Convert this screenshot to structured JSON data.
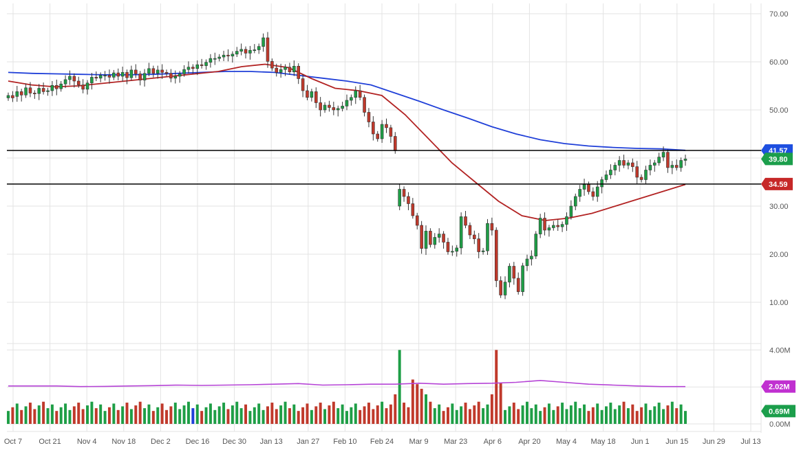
{
  "chart_data": {
    "type": "candlestick",
    "y_axis": {
      "range": [
        0,
        70
      ],
      "ticks": [
        "70.00",
        "60.00",
        "50.00",
        "40.00",
        "30.00",
        "20.00",
        "10.00"
      ],
      "tick_values": [
        70,
        60,
        50,
        40,
        30,
        20,
        10
      ]
    },
    "volume_axis": {
      "range": [
        0,
        4.2
      ],
      "ticks": [
        "4.00M",
        "2.00M",
        "0.00M"
      ],
      "tick_values": [
        4,
        2,
        0
      ]
    },
    "x_axis": {
      "ticks": [
        "Oct 7",
        "Oct 21",
        "Nov 4",
        "Nov 18",
        "Dec 2",
        "Dec 16",
        "Dec 30",
        "Jan 13",
        "Jan 27",
        "Feb 10",
        "Feb 24",
        "Mar 9",
        "Mar 23",
        "Apr 6",
        "Apr 20",
        "May 4",
        "May 18",
        "Jun 1",
        "Jun 15",
        "Jun 29",
        "Jul 13"
      ],
      "grid": true
    },
    "horizontal_lines": [
      {
        "label": "41.57",
        "value": 41.57,
        "color": "#000000",
        "badge_color": "#1e4fe0"
      },
      {
        "label": "34.59",
        "value": 34.59,
        "color": "#000000",
        "badge_color": "#c62828"
      }
    ],
    "price_badge": {
      "label": "39.80",
      "value": 39.8,
      "color": "#1b9e4b"
    },
    "volume_badges": [
      {
        "label": "2.02M",
        "value": 2.02,
        "color": "#c030d0"
      },
      {
        "label": "0.69M",
        "value": 0.69,
        "color": "#1b9e4b"
      }
    ],
    "colors": {
      "up": "#1e9e46",
      "down": "#c0392b",
      "ma_slow": "#1f3fd8",
      "ma_fast": "#b22222",
      "volume_avg": "#b543d6"
    },
    "moving_average_200": [
      57.8,
      57.6,
      57.5,
      57.4,
      57.3,
      57.3,
      57.4,
      57.6,
      57.8,
      58.0,
      58.0,
      57.8,
      57.2,
      56.6,
      56.0,
      55.2,
      53.5,
      51.8,
      50.0,
      48.3,
      46.5,
      45.0,
      43.8,
      43.0,
      42.5,
      42.2,
      42.0,
      41.9,
      41.6
    ],
    "moving_average_50": [
      56.0,
      55.2,
      54.8,
      55.0,
      55.5,
      56.0,
      56.5,
      57.0,
      57.5,
      58.0,
      59.0,
      59.5,
      58.8,
      56.5,
      54.5,
      54.0,
      53.0,
      49.0,
      44.0,
      39.0,
      35.0,
      31.0,
      28.0,
      27.0,
      27.5,
      28.5,
      30.0,
      31.5,
      33.0,
      34.5
    ],
    "candles": [
      [
        52.5,
        53.0
      ],
      [
        53.0,
        52.5
      ],
      [
        52.8,
        53.8
      ],
      [
        53.8,
        53.1
      ],
      [
        53.1,
        54.6
      ],
      [
        54.6,
        53.5
      ],
      [
        53.5,
        53.4
      ],
      [
        53.4,
        54.5
      ],
      [
        54.5,
        53.8
      ],
      [
        53.8,
        54.0
      ],
      [
        54.0,
        55.1
      ],
      [
        55.1,
        54.4
      ],
      [
        54.4,
        55.4
      ],
      [
        55.4,
        56.3
      ],
      [
        56.3,
        57.0
      ],
      [
        57.0,
        56.0
      ],
      [
        56.0,
        55.2
      ],
      [
        55.2,
        54.3
      ],
      [
        54.3,
        55.6
      ],
      [
        55.6,
        56.8
      ],
      [
        56.8,
        56.6
      ],
      [
        56.6,
        57.2
      ],
      [
        57.2,
        57.2
      ],
      [
        57.2,
        56.8
      ],
      [
        56.8,
        57.7
      ],
      [
        57.7,
        57.0
      ],
      [
        57.0,
        57.8
      ],
      [
        57.8,
        56.7
      ],
      [
        56.7,
        58.3
      ],
      [
        58.3,
        57.5
      ],
      [
        57.5,
        56.2
      ],
      [
        56.2,
        57.6
      ],
      [
        57.6,
        58.6
      ],
      [
        58.6,
        57.6
      ],
      [
        57.6,
        58.3
      ],
      [
        58.3,
        57.8
      ],
      [
        57.8,
        57.6
      ],
      [
        57.6,
        56.6
      ],
      [
        56.6,
        57.0
      ],
      [
        57.0,
        57.5
      ],
      [
        57.5,
        58.4
      ],
      [
        58.4,
        58.9
      ],
      [
        58.9,
        58.6
      ],
      [
        58.6,
        59.4
      ],
      [
        59.4,
        59.2
      ],
      [
        59.2,
        59.9
      ],
      [
        59.9,
        60.7
      ],
      [
        60.7,
        60.7
      ],
      [
        60.7,
        61.0
      ],
      [
        61.0,
        61.4
      ],
      [
        61.4,
        61.2
      ],
      [
        61.2,
        61.6
      ],
      [
        61.6,
        62.2
      ],
      [
        62.2,
        62.6
      ],
      [
        62.6,
        61.8
      ],
      [
        61.8,
        62.4
      ],
      [
        62.4,
        62.5
      ],
      [
        62.5,
        63.2
      ],
      [
        63.2,
        65.0
      ],
      [
        65.0,
        60.1
      ],
      [
        60.1,
        58.7
      ],
      [
        58.7,
        57.8
      ],
      [
        57.8,
        58.4
      ],
      [
        58.4,
        58.9
      ],
      [
        58.9,
        57.9
      ],
      [
        57.9,
        59.1
      ],
      [
        59.1,
        56.5
      ],
      [
        56.5,
        54.0
      ],
      [
        54.0,
        52.6
      ],
      [
        52.6,
        53.8
      ],
      [
        53.8,
        51.5
      ],
      [
        51.5,
        50.0
      ],
      [
        50.0,
        51.0
      ],
      [
        51.0,
        50.5
      ],
      [
        50.5,
        50.0
      ],
      [
        50.0,
        50.3
      ],
      [
        50.3,
        50.8
      ],
      [
        50.8,
        52.0
      ],
      [
        52.0,
        52.6
      ],
      [
        52.6,
        54.0
      ],
      [
        54.0,
        52.6
      ],
      [
        52.6,
        49.5
      ],
      [
        49.5,
        47.5
      ],
      [
        47.5,
        45.0
      ],
      [
        45.0,
        44.0
      ],
      [
        44.0,
        47.0
      ],
      [
        47.0,
        46.3
      ],
      [
        46.3,
        44.5
      ],
      [
        44.5,
        41.5
      ],
      [
        30.0,
        33.5
      ],
      [
        33.5,
        32.0
      ],
      [
        32.0,
        30.5
      ],
      [
        30.5,
        28.0
      ],
      [
        28.0,
        26.0
      ],
      [
        26.0,
        21.2
      ],
      [
        21.2,
        24.8
      ],
      [
        24.8,
        22.0
      ],
      [
        22.0,
        23.5
      ],
      [
        23.5,
        24.2
      ],
      [
        24.2,
        22.5
      ],
      [
        22.5,
        20.5
      ],
      [
        20.5,
        20.6
      ],
      [
        20.6,
        21.3
      ],
      [
        21.3,
        27.8
      ],
      [
        27.8,
        26.0
      ],
      [
        26.0,
        24.0
      ],
      [
        24.0,
        23.2
      ],
      [
        23.2,
        20.5
      ],
      [
        20.5,
        20.7
      ],
      [
        20.7,
        26.4
      ],
      [
        26.4,
        25.0
      ],
      [
        25.0,
        14.5
      ],
      [
        14.5,
        11.5
      ],
      [
        11.5,
        14.2
      ],
      [
        14.2,
        17.5
      ],
      [
        17.5,
        15.0
      ],
      [
        15.0,
        12.2
      ],
      [
        12.2,
        17.6
      ],
      [
        17.6,
        19.0
      ],
      [
        19.0,
        19.6
      ],
      [
        19.6,
        24.2
      ],
      [
        24.2,
        27.5
      ],
      [
        27.5,
        25.0
      ],
      [
        25.0,
        25.5
      ],
      [
        25.5,
        26.0
      ],
      [
        26.0,
        25.7
      ],
      [
        25.7,
        26.2
      ],
      [
        26.2,
        27.8
      ],
      [
        27.8,
        30.0
      ],
      [
        30.0,
        32.0
      ],
      [
        32.0,
        33.5
      ],
      [
        33.5,
        34.5
      ],
      [
        34.5,
        33.0
      ],
      [
        33.0,
        32.0
      ],
      [
        32.0,
        34.0
      ],
      [
        34.0,
        35.5
      ],
      [
        35.5,
        36.5
      ],
      [
        36.5,
        37.5
      ],
      [
        37.5,
        38.5
      ],
      [
        38.5,
        39.5
      ],
      [
        39.5,
        38.5
      ],
      [
        38.5,
        39.0
      ],
      [
        39.0,
        38.2
      ],
      [
        38.2,
        36.0
      ],
      [
        36.0,
        35.5
      ],
      [
        35.5,
        37.5
      ],
      [
        37.5,
        38.5
      ],
      [
        38.5,
        39.0
      ],
      [
        39.0,
        40.2
      ],
      [
        40.2,
        41.2
      ],
      [
        41.2,
        38.0
      ],
      [
        38.0,
        38.5
      ],
      [
        38.5,
        38.0
      ],
      [
        38.0,
        39.5
      ],
      [
        39.5,
        39.8
      ]
    ],
    "volume_avg": [
      2.05,
      2.05,
      2.05,
      2.02,
      2.03,
      2.05,
      2.07,
      2.1,
      2.08,
      2.1,
      2.12,
      2.15,
      2.18,
      2.1,
      2.12,
      2.15,
      2.15,
      2.2,
      2.15,
      2.18,
      2.2,
      2.25,
      2.35,
      2.25,
      2.15,
      2.1,
      2.05,
      2.02,
      2.02
    ],
    "volume_highlights": {
      "blue_index": 42
    }
  }
}
